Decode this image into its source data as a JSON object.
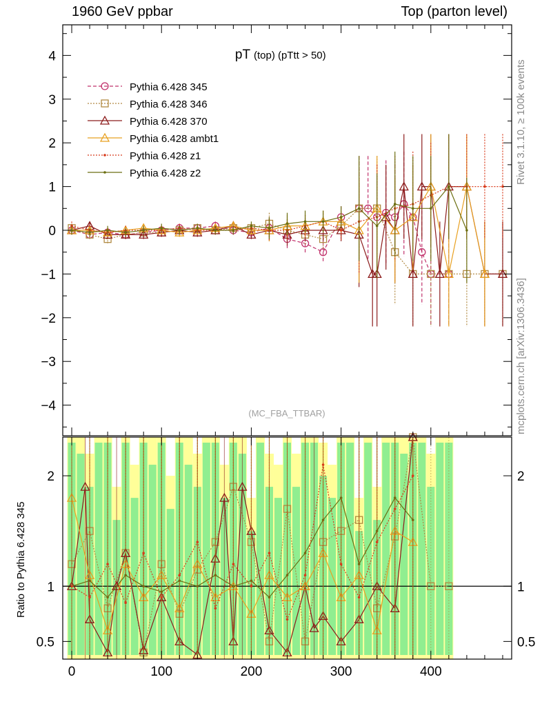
{
  "header": {
    "left": "1960 GeV ppbar",
    "right": "Top (parton level)"
  },
  "side_labels": {
    "rivet": "Rivet 3.1.10, ≥ 100k events",
    "mcplots": "mcplots.cern.ch [arXiv:1306.3436]"
  },
  "analysis_tag": "(MC_FBA_TTBAR)",
  "colors": {
    "band_green": "#90ee90",
    "band_yellow": "#ffff99",
    "s345": "#c0306a",
    "s346": "#b08840",
    "s370": "#8b1a1a",
    "ambt1": "#e8a020",
    "z1": "#d83a1a",
    "z2": "#6b6e10"
  },
  "chart_data": [
    {
      "type": "scatter",
      "title_main": "pT",
      "title_sub": "(top) (pTtt > 50)",
      "xlim": [
        -10,
        490
      ],
      "ylim": [
        -4.7,
        4.7
      ],
      "yticks": [
        -4,
        -3,
        -2,
        -1,
        0,
        1,
        2,
        3,
        4
      ],
      "ytick_labels": [
        "−4",
        "−3",
        "−2",
        "−1",
        "0",
        "1",
        "2",
        "3",
        "4"
      ],
      "grid": false,
      "legend_position": "top-left",
      "legend": [
        {
          "label": "Pythia 6.428 345",
          "marker": "circle",
          "dash": "dashed",
          "key": "s345"
        },
        {
          "label": "Pythia 6.428 346",
          "marker": "square",
          "dash": "dotted",
          "key": "s346"
        },
        {
          "label": "Pythia 6.428 370",
          "marker": "triangle",
          "dash": "solid",
          "key": "s370"
        },
        {
          "label": "Pythia 6.428 ambt1",
          "marker": "triangle",
          "dash": "solid",
          "key": "ambt1"
        },
        {
          "label": "Pythia 6.428 z1",
          "marker": "dot",
          "dash": "dotted",
          "key": "z1"
        },
        {
          "label": "Pythia 6.428 z2",
          "marker": "dot",
          "dash": "solid",
          "key": "z2"
        }
      ],
      "series": [
        {
          "key": "s345",
          "x": [
            0,
            20,
            40,
            60,
            80,
            100,
            120,
            140,
            160,
            180,
            200,
            220,
            240,
            260,
            280,
            300,
            320,
            330,
            340,
            350,
            360,
            370,
            380,
            390,
            400,
            420
          ],
          "y": [
            0.0,
            -0.1,
            -0.05,
            -0.1,
            -0.05,
            0.0,
            0.05,
            0.05,
            0.1,
            0.0,
            -0.05,
            0.05,
            -0.2,
            -0.3,
            -0.5,
            0.3,
            0.5,
            0.5,
            0.3,
            0.4,
            0.3,
            0.6,
            0.3,
            -0.5,
            -1.0,
            -1.0
          ]
        },
        {
          "key": "s346",
          "x": [
            0,
            20,
            40,
            60,
            80,
            100,
            120,
            140,
            160,
            180,
            200,
            220,
            240,
            260,
            280,
            300,
            320,
            340,
            360,
            380,
            400,
            420,
            440,
            460,
            480
          ],
          "y": [
            0.05,
            -0.1,
            -0.2,
            -0.1,
            -0.05,
            -0.05,
            0.0,
            0.05,
            0.0,
            0.05,
            0.05,
            0.15,
            0.0,
            -0.1,
            -0.2,
            0.1,
            0.5,
            0.5,
            -0.5,
            -1.0,
            -1.0,
            -1.0,
            -1.0,
            -1.0,
            -1.0
          ]
        },
        {
          "key": "s370",
          "x": [
            0,
            20,
            40,
            60,
            80,
            100,
            120,
            140,
            160,
            180,
            200,
            220,
            240,
            260,
            280,
            300,
            320,
            335,
            340,
            350,
            360,
            370,
            380,
            390,
            400,
            410,
            420,
            440,
            460,
            480
          ],
          "y": [
            0.0,
            0.1,
            -0.1,
            -0.1,
            -0.1,
            -0.05,
            0.0,
            -0.05,
            0.0,
            0.1,
            -0.1,
            0.0,
            -0.1,
            0.0,
            0.0,
            0.0,
            -0.1,
            -1.0,
            -1.0,
            0.3,
            0.0,
            1.0,
            -1.0,
            1.0,
            1.0,
            -1.0,
            1.0,
            1.0,
            -1.0,
            -1.0
          ]
        },
        {
          "key": "ambt1",
          "x": [
            0,
            20,
            40,
            60,
            80,
            100,
            120,
            140,
            160,
            180,
            200,
            220,
            240,
            260,
            280,
            300,
            320,
            340,
            360,
            380,
            400,
            420,
            440,
            460
          ],
          "y": [
            0.0,
            0.0,
            -0.05,
            0.0,
            0.05,
            0.0,
            -0.05,
            0.0,
            0.05,
            0.1,
            0.0,
            0.0,
            0.1,
            0.1,
            0.2,
            0.2,
            0.0,
            0.5,
            0.0,
            0.3,
            1.0,
            -1.0,
            1.0,
            -1.0
          ]
        },
        {
          "key": "z1",
          "x": [
            0,
            20,
            40,
            60,
            80,
            100,
            120,
            140,
            160,
            180,
            200,
            220,
            240,
            260,
            280,
            300,
            320,
            340,
            360,
            380,
            400,
            420,
            440,
            460,
            480
          ],
          "y": [
            0.1,
            0.0,
            -0.05,
            0.0,
            0.0,
            0.0,
            0.05,
            0.0,
            0.0,
            0.0,
            0.05,
            0.0,
            0.0,
            0.1,
            0.2,
            0.0,
            0.2,
            0.3,
            0.5,
            0.6,
            0.8,
            1.0,
            1.0,
            1.0,
            1.0
          ]
        },
        {
          "key": "z2",
          "x": [
            0,
            20,
            40,
            60,
            80,
            100,
            120,
            140,
            160,
            180,
            200,
            220,
            240,
            260,
            280,
            300,
            320,
            340,
            360,
            380,
            400,
            420,
            440
          ],
          "y": [
            0.0,
            -0.05,
            0.0,
            -0.05,
            0.0,
            0.05,
            0.0,
            0.05,
            0.0,
            0.0,
            0.1,
            0.05,
            0.15,
            0.2,
            0.2,
            0.3,
            0.5,
            0.1,
            0.6,
            0.5,
            0.5,
            1.0,
            0.0
          ]
        }
      ]
    },
    {
      "type": "line",
      "ylabel": "Ratio to Pythia 6.428 345",
      "xlim": [
        -10,
        490
      ],
      "ylim": [
        0.34,
        2.35
      ],
      "reference": 1.0,
      "xticks": [
        0,
        100,
        200,
        300,
        400
      ],
      "xtick_labels": [
        "0",
        "100",
        "200",
        "300",
        "400"
      ],
      "yticks": [
        0.5,
        1,
        2
      ],
      "ytick_labels": [
        "0.5",
        "1",
        "2"
      ],
      "band_x": [
        0,
        10,
        20,
        30,
        40,
        50,
        60,
        70,
        80,
        90,
        100,
        110,
        120,
        130,
        140,
        150,
        160,
        170,
        180,
        190,
        200,
        210,
        220,
        230,
        240,
        250,
        260,
        270,
        280,
        290,
        300,
        310,
        320,
        330,
        340,
        350,
        360,
        370,
        380,
        390,
        400,
        410,
        420
      ],
      "band_green_hi": [
        2.3,
        2.2,
        1.9,
        2.3,
        2.3,
        1.6,
        2.3,
        1.8,
        2.3,
        2.1,
        2.3,
        1.7,
        2.3,
        2.1,
        1.9,
        2.3,
        2.3,
        1.8,
        2.3,
        2.2,
        1.5,
        2.3,
        1.9,
        1.8,
        2.3,
        1.9,
        2.3,
        2.3,
        2.0,
        1.8,
        2.3,
        2.3,
        1.5,
        2.3,
        1.6,
        2.3,
        2.3,
        2.2,
        2.3,
        2.3,
        1.9,
        2.3,
        2.3
      ],
      "band_yellow_hi": [
        2.35,
        2.35,
        2.2,
        2.35,
        2.35,
        1.9,
        2.35,
        2.1,
        2.35,
        2.35,
        2.35,
        2.0,
        2.35,
        2.35,
        2.2,
        2.35,
        2.35,
        2.1,
        2.35,
        2.35,
        1.8,
        2.35,
        2.2,
        2.1,
        2.35,
        2.2,
        2.35,
        2.35,
        2.3,
        2.1,
        2.35,
        2.35,
        1.8,
        2.35,
        1.9,
        2.35,
        2.35,
        2.35,
        2.35,
        2.35,
        2.2,
        2.35,
        2.35
      ],
      "series": [
        {
          "key": "s346",
          "x": [
            0,
            20,
            40,
            60,
            80,
            100,
            120,
            140,
            160,
            180,
            200,
            220,
            240,
            260,
            280,
            300,
            320,
            340,
            360,
            380,
            400,
            420
          ],
          "y": [
            1.2,
            1.5,
            0.8,
            1.3,
            0.4,
            1.2,
            0.75,
            1.15,
            1.4,
            1.9,
            1.4,
            0.5,
            1.7,
            0.5,
            1.4,
            1.5,
            1.6,
            0.8,
            1.45,
            2.35,
            1.0,
            1.0
          ]
        },
        {
          "key": "s370",
          "x": [
            0,
            15,
            20,
            40,
            50,
            60,
            80,
            100,
            120,
            140,
            160,
            170,
            180,
            190,
            200,
            220,
            240,
            260,
            270,
            280,
            300,
            320,
            340,
            360,
            380
          ],
          "y": [
            1.0,
            1.9,
            0.7,
            0.4,
            1.0,
            1.3,
            0.42,
            0.9,
            0.5,
            0.38,
            1.25,
            1.8,
            0.5,
            1.9,
            1.5,
            0.6,
            0.4,
            1.0,
            0.62,
            0.73,
            0.5,
            0.7,
            1.0,
            0.8,
            2.35
          ]
        },
        {
          "key": "ambt1",
          "x": [
            0,
            20,
            40,
            60,
            80,
            100,
            120,
            140,
            160,
            180,
            200,
            220,
            240,
            260,
            280,
            300,
            320,
            340,
            360,
            380
          ],
          "y": [
            1.8,
            1.1,
            0.6,
            1.2,
            0.9,
            1.1,
            0.8,
            1.2,
            0.9,
            1.0,
            0.75,
            1.1,
            0.9,
            1.0,
            1.3,
            0.9,
            1.1,
            0.6,
            1.5,
            1.4
          ]
        },
        {
          "key": "z2",
          "x": [
            0,
            20,
            40,
            60,
            80,
            100,
            120,
            140,
            160,
            180,
            200,
            220,
            240,
            260,
            280,
            300,
            320,
            340,
            360,
            380
          ],
          "y": [
            1.0,
            1.05,
            0.9,
            1.1,
            1.0,
            0.95,
            1.05,
            1.0,
            1.1,
            1.0,
            1.05,
            0.9,
            1.1,
            1.3,
            1.6,
            1.8,
            1.2,
            1.5,
            1.8,
            1.6
          ]
        },
        {
          "key": "z1",
          "x": [
            0,
            20,
            40,
            60,
            80,
            100,
            120,
            140,
            160,
            180,
            200,
            220,
            240,
            260,
            280,
            300,
            320,
            340,
            360,
            380
          ],
          "y": [
            1.0,
            0.9,
            1.2,
            0.85,
            1.3,
            0.9,
            1.1,
            1.4,
            0.8,
            1.2,
            1.0,
            1.3,
            0.7,
            1.1,
            2.1,
            1.2,
            0.9,
            1.4,
            1.7,
            2.0
          ]
        }
      ]
    }
  ]
}
